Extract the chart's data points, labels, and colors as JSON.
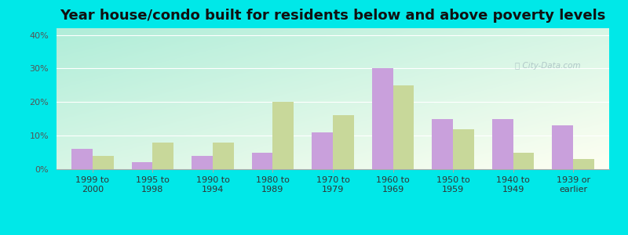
{
  "title": "Year house/condo built for residents below and above poverty levels",
  "categories": [
    "1999 to\n2000",
    "1995 to\n1998",
    "1990 to\n1994",
    "1980 to\n1989",
    "1970 to\n1979",
    "1960 to\n1969",
    "1950 to\n1959",
    "1940 to\n1949",
    "1939 or\nearlier"
  ],
  "below_poverty": [
    6,
    2,
    4,
    5,
    11,
    30,
    15,
    15,
    13
  ],
  "above_poverty": [
    4,
    8,
    8,
    20,
    16,
    25,
    12,
    5,
    3
  ],
  "below_color": "#c9a0dc",
  "above_color": "#c8d89a",
  "outer_bg": "#00e8e8",
  "plot_bg_topleft": "#b0e8d8",
  "plot_bg_bottomright": "#f8fff0",
  "ylim": [
    0,
    42
  ],
  "yticks": [
    0,
    10,
    20,
    30,
    40
  ],
  "ytick_labels": [
    "0%",
    "10%",
    "20%",
    "30%",
    "40%"
  ],
  "title_fontsize": 13,
  "tick_fontsize": 8,
  "legend_fontsize": 9,
  "bar_width": 0.35
}
